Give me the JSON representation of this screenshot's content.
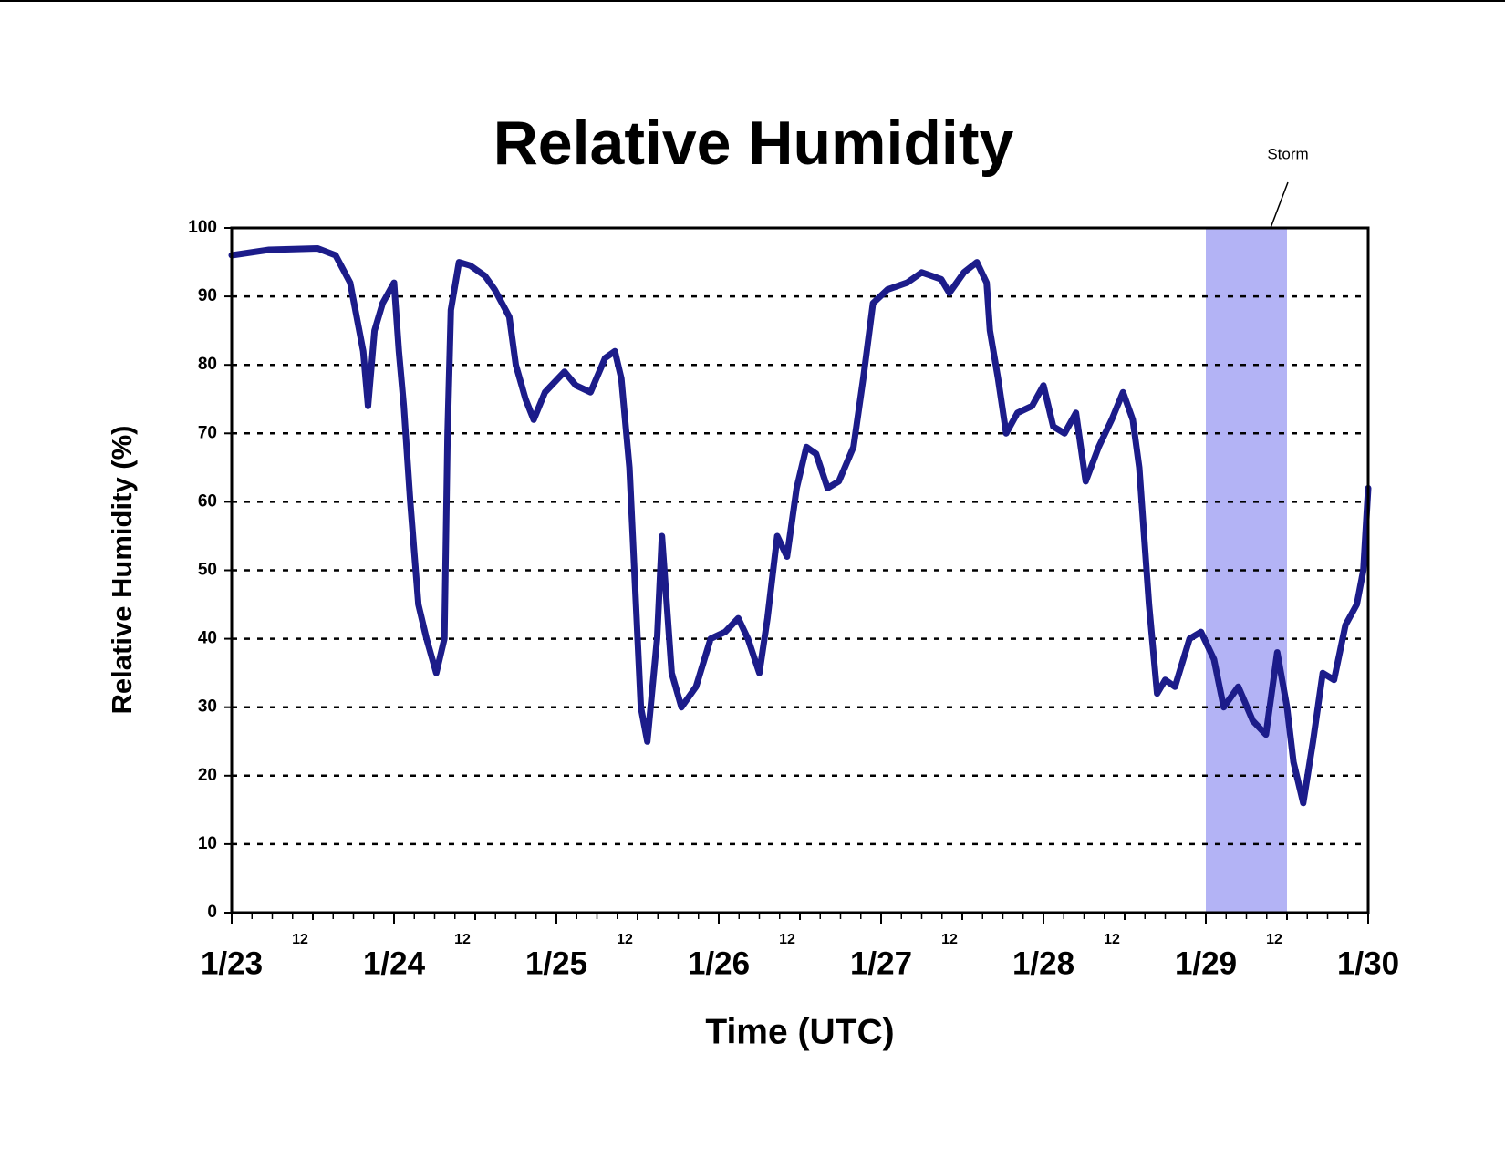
{
  "chart_data": {
    "type": "line",
    "title": "Relative Humidity",
    "xlabel": "Time (UTC)",
    "ylabel": "Relative Humidity (%)",
    "color": "#1c1c8a",
    "x": [
      0,
      0.23,
      0.53,
      0.64,
      0.73,
      0.81,
      0.84,
      0.88,
      0.93,
      1.0,
      1.03,
      1.06,
      1.1,
      1.15,
      1.2,
      1.26,
      1.31,
      1.33,
      1.35,
      1.4,
      1.47,
      1.56,
      1.62,
      1.71,
      1.75,
      1.81,
      1.86,
      1.93,
      2.05,
      2.12,
      2.21,
      2.3,
      2.36,
      2.4,
      2.45,
      2.47,
      2.5,
      2.52,
      2.56,
      2.62,
      2.65,
      2.71,
      2.77,
      2.86,
      2.95,
      3.04,
      3.12,
      3.18,
      3.25,
      3.3,
      3.36,
      3.42,
      3.48,
      3.54,
      3.6,
      3.67,
      3.74,
      3.83,
      3.89,
      3.95,
      4.04,
      4.16,
      4.25,
      4.37,
      4.42,
      4.51,
      4.59,
      4.65,
      4.67,
      4.72,
      4.77,
      4.84,
      4.93,
      5.0,
      5.06,
      5.13,
      5.2,
      5.26,
      5.34,
      5.42,
      5.49,
      5.55,
      5.59,
      5.65,
      5.7,
      5.75,
      5.81,
      5.9,
      5.97,
      6.05,
      6.11,
      6.2,
      6.29,
      6.37,
      6.44,
      6.5,
      6.54,
      6.6,
      6.66,
      6.72,
      6.79,
      6.86,
      6.93,
      6.97,
      7.0
    ],
    "values": [
      96,
      96.8,
      97,
      96,
      92,
      82,
      74,
      85,
      89,
      92,
      82,
      74,
      60,
      45,
      40,
      35,
      40,
      70,
      88,
      95,
      94.5,
      93,
      91,
      87,
      80,
      75,
      72,
      76,
      79,
      77,
      76,
      81,
      82,
      78,
      65,
      55,
      40,
      30,
      25,
      40,
      55,
      35,
      30,
      33,
      40,
      41,
      43,
      40,
      35,
      43,
      55,
      52,
      62,
      68,
      67,
      62,
      63,
      68,
      78,
      89,
      91,
      92,
      93.5,
      92.5,
      90.5,
      93.5,
      95,
      92,
      85,
      78,
      70,
      73,
      74,
      77,
      71,
      70,
      73,
      63,
      68,
      72,
      76,
      72,
      65,
      45,
      32,
      34,
      33,
      40,
      41,
      37,
      30,
      33,
      28,
      26,
      38,
      30,
      22,
      16,
      25,
      35,
      34,
      42,
      45,
      50,
      62
    ],
    "xlim": [
      0,
      7
    ],
    "ylim": [
      0,
      100
    ],
    "xticks": [
      {
        "value": 0,
        "label": "1/23"
      },
      {
        "value": 0.5,
        "label": "12"
      },
      {
        "value": 1,
        "label": "1/24"
      },
      {
        "value": 1.5,
        "label": "12"
      },
      {
        "value": 2,
        "label": "1/25"
      },
      {
        "value": 2.5,
        "label": "12"
      },
      {
        "value": 3,
        "label": "1/26"
      },
      {
        "value": 3.5,
        "label": "12"
      },
      {
        "value": 4,
        "label": "1/27"
      },
      {
        "value": 4.5,
        "label": "12"
      },
      {
        "value": 5,
        "label": "1/28"
      },
      {
        "value": 5.5,
        "label": "12"
      },
      {
        "value": 6,
        "label": "1/29"
      },
      {
        "value": 6.5,
        "label": "12"
      },
      {
        "value": 7,
        "label": "1/30"
      }
    ],
    "yticks": [
      0,
      10,
      20,
      30,
      40,
      50,
      60,
      70,
      80,
      90,
      100
    ],
    "grid": true,
    "annotations": [
      {
        "text": "Storm",
        "x": [
          6,
          6.5
        ],
        "color": "#b3b3f5"
      }
    ]
  }
}
